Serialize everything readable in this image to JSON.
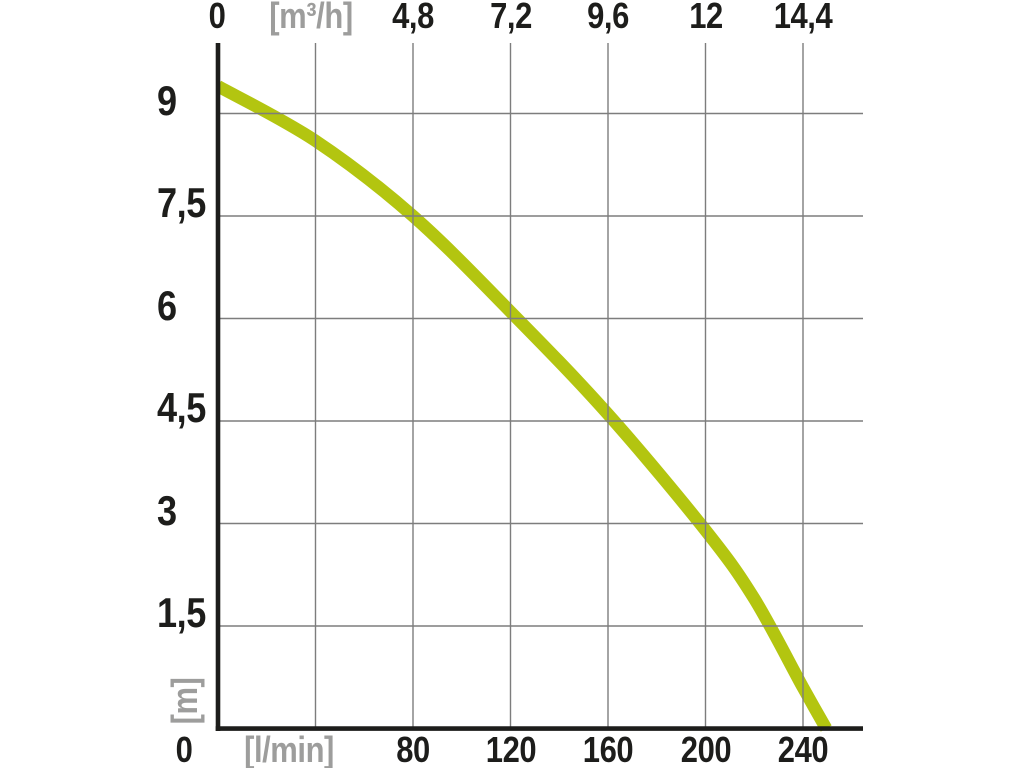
{
  "chart_data": {
    "type": "line",
    "title": "",
    "grid": true,
    "legend": "none",
    "series": [
      {
        "name": "pump head-flow performance curve",
        "color": "#b3c510",
        "points_flow_lmin_head_m": [
          [
            0,
            9.4
          ],
          [
            40,
            8.6
          ],
          [
            80,
            7.5
          ],
          [
            120,
            6.1
          ],
          [
            160,
            4.6
          ],
          [
            200,
            2.9
          ],
          [
            220,
            1.9
          ],
          [
            240,
            0.6
          ],
          [
            249.5,
            0
          ]
        ]
      }
    ],
    "axes": {
      "top": {
        "unit_label": "[m³/h]",
        "origin_label": "0",
        "lmin_per_unit": 16.6667,
        "ticks": [
          {
            "v": 4.8,
            "label": "4,8"
          },
          {
            "v": 7.2,
            "label": "7,2"
          },
          {
            "v": 9.6,
            "label": "9,6"
          },
          {
            "v": 12,
            "label": "12"
          },
          {
            "v": 14.4,
            "label": "14,4"
          }
        ]
      },
      "bottom": {
        "unit_label": "[l/min]",
        "origin_label": "0",
        "ticks": [
          {
            "v": 80,
            "label": "80"
          },
          {
            "v": 120,
            "label": "120"
          },
          {
            "v": 160,
            "label": "160"
          },
          {
            "v": 200,
            "label": "200"
          },
          {
            "v": 240,
            "label": "240"
          }
        ]
      },
      "left": {
        "unit_label": "[m]",
        "origin_label": "0",
        "ticks": [
          {
            "v": 9,
            "label": "9"
          },
          {
            "v": 7.5,
            "label": "7,5"
          },
          {
            "v": 6,
            "label": "6"
          },
          {
            "v": 4.5,
            "label": "4,5"
          },
          {
            "v": 3,
            "label": "3"
          },
          {
            "v": 1.5,
            "label": "1,5"
          }
        ]
      }
    },
    "x_range_lmin": [
      0,
      264
    ],
    "y_range_m": [
      0,
      10
    ],
    "unlabeled_grid_x_lmin": [
      40
    ]
  },
  "colors": {
    "curve": "#b3c510",
    "grid": "#7d7d7d",
    "axis": "#1d1d1b",
    "label": "#1d1d1b",
    "unit_label": "#9d9d9c",
    "background": "#ffffff"
  }
}
